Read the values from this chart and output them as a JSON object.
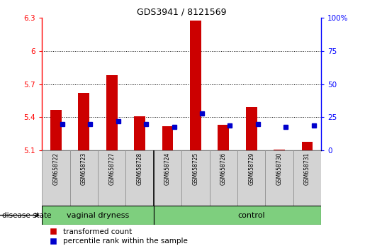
{
  "title": "GDS3941 / 8121569",
  "samples": [
    "GSM658722",
    "GSM658723",
    "GSM658727",
    "GSM658728",
    "GSM658724",
    "GSM658725",
    "GSM658726",
    "GSM658729",
    "GSM658730",
    "GSM658731"
  ],
  "group_labels": [
    "vaginal dryness",
    "control"
  ],
  "group_split": 4,
  "transformed_count": [
    5.47,
    5.62,
    5.78,
    5.41,
    5.32,
    6.27,
    5.33,
    5.49,
    5.11,
    5.18
  ],
  "percentile_rank": [
    20,
    20,
    22,
    20,
    18,
    28,
    19,
    20,
    18,
    19
  ],
  "ylim_left": [
    5.1,
    6.3
  ],
  "ylim_right": [
    0,
    100
  ],
  "yticks_left": [
    5.1,
    5.4,
    5.7,
    6.0,
    6.3
  ],
  "yticks_right": [
    0,
    25,
    50,
    75,
    100
  ],
  "ytick_labels_left": [
    "5.1",
    "5.4",
    "5.7",
    "6",
    "6.3"
  ],
  "ytick_labels_right": [
    "0",
    "25",
    "50",
    "75",
    "100%"
  ],
  "bar_color": "#cc0000",
  "dot_color": "#0000cc",
  "bar_width": 0.4,
  "dot_size": 18,
  "grid_yticks": [
    5.4,
    5.7,
    6.0
  ],
  "label_transformed": "transformed count",
  "label_percentile": "percentile rank within the sample",
  "disease_state_label": "disease state"
}
